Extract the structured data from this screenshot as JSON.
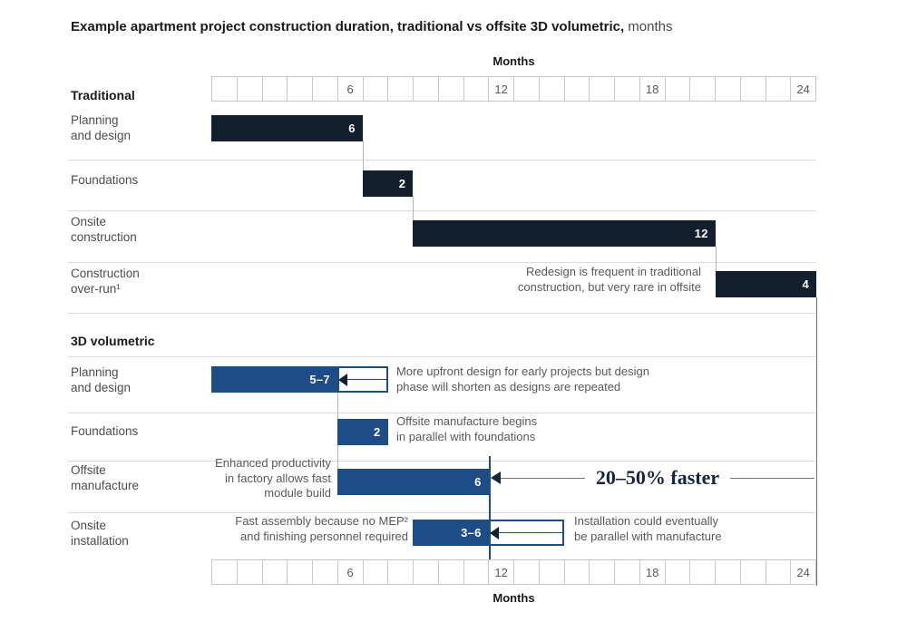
{
  "title": {
    "bold": "Example apartment project construction duration, traditional vs offsite 3D volumetric,",
    "light": " months"
  },
  "palette": {
    "navy": "#141f2e",
    "blue": "#1e4c87",
    "gray_text": "#595959",
    "dark_text": "#1a1a1a",
    "grid": "#c8c8c8",
    "separator": "#dcdcdc",
    "connector": "#b5b5b5",
    "line_dark": "#6b7484",
    "callout_navy": "#16243d"
  },
  "chart_data": {
    "type": "bar",
    "variant": "gantt",
    "title": "Example apartment project construction duration, traditional vs offsite 3D volumetric, months",
    "axis": {
      "label": "Months",
      "min": 0,
      "max": 24,
      "ticks": [
        6,
        12,
        18,
        24
      ],
      "shown": "top and bottom",
      "grid": "monthly cells"
    },
    "sections": [
      {
        "name": "Traditional",
        "bar_style": "navy",
        "rows": [
          {
            "label": "Planning\nand design",
            "start": 0,
            "end": 6,
            "value_label": "6"
          },
          {
            "label": "Foundations",
            "start": 6,
            "end": 8,
            "value_label": "2"
          },
          {
            "label": "Onsite\nconstruction",
            "start": 8,
            "end": 20,
            "value_label": "12"
          },
          {
            "label": "Construction\nover-run¹",
            "start": 20,
            "end": 24,
            "value_label": "4",
            "annotation_left": "Redesign is frequent in traditional\nconstruction, but very rare in offsite"
          }
        ]
      },
      {
        "name": "3D volumetric",
        "bar_style": "blue",
        "rows": [
          {
            "label": "Planning\nand design",
            "start": 0,
            "end": 5,
            "range_end": 7,
            "value_label": "5–7",
            "annotation_right": "More upfront design for early projects but design\nphase will shorten as designs are repeated"
          },
          {
            "label": "Foundations",
            "start": 5,
            "end": 7,
            "value_label": "2",
            "annotation_right": "Offsite manufacture begins\nin parallel with foundations"
          },
          {
            "label": "Offsite\nmanufacture",
            "start": 5,
            "end": 11,
            "value_label": "6",
            "annotation_left": "Enhanced productivity\nin factory allows fast\nmodule build"
          },
          {
            "label": "Onsite\ninstallation",
            "start": 8,
            "end": 11,
            "range_end": 14,
            "value_label": "3–6",
            "annotation_left": "Fast assembly because no MEP²\nand finishing personnel required",
            "annotation_right": "Installation could eventually\nbe parallel with manufacture"
          }
        ]
      }
    ],
    "callout": {
      "text": "20–50% faster",
      "from_month": 11,
      "to_month": 24
    }
  }
}
